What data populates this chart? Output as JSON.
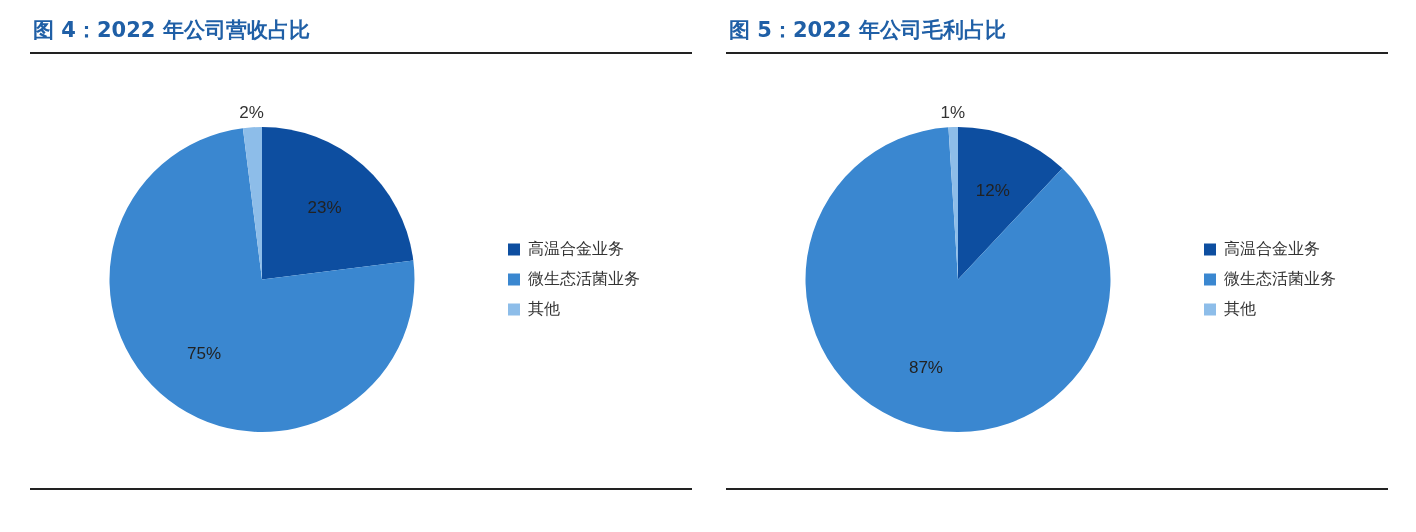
{
  "chart_data": [
    {
      "type": "pie",
      "title": "图 4：2022 年公司营收占比",
      "categories": [
        "高温合金业务",
        "微生态活菌业务",
        "其他"
      ],
      "values": [
        23,
        75,
        2
      ],
      "value_labels": [
        "23%",
        "75%",
        "2%"
      ],
      "colors": [
        "#0d4ea0",
        "#3a87d0",
        "#8dbde9"
      ],
      "legend": "right"
    },
    {
      "type": "pie",
      "title": "图 5：2022 年公司毛利占比",
      "categories": [
        "高温合金业务",
        "微生态活菌业务",
        "其他"
      ],
      "values": [
        12,
        87,
        1
      ],
      "value_labels": [
        "12%",
        "87%",
        "1%"
      ],
      "colors": [
        "#0d4ea0",
        "#3a87d0",
        "#8dbde9"
      ],
      "legend": "right"
    }
  ]
}
